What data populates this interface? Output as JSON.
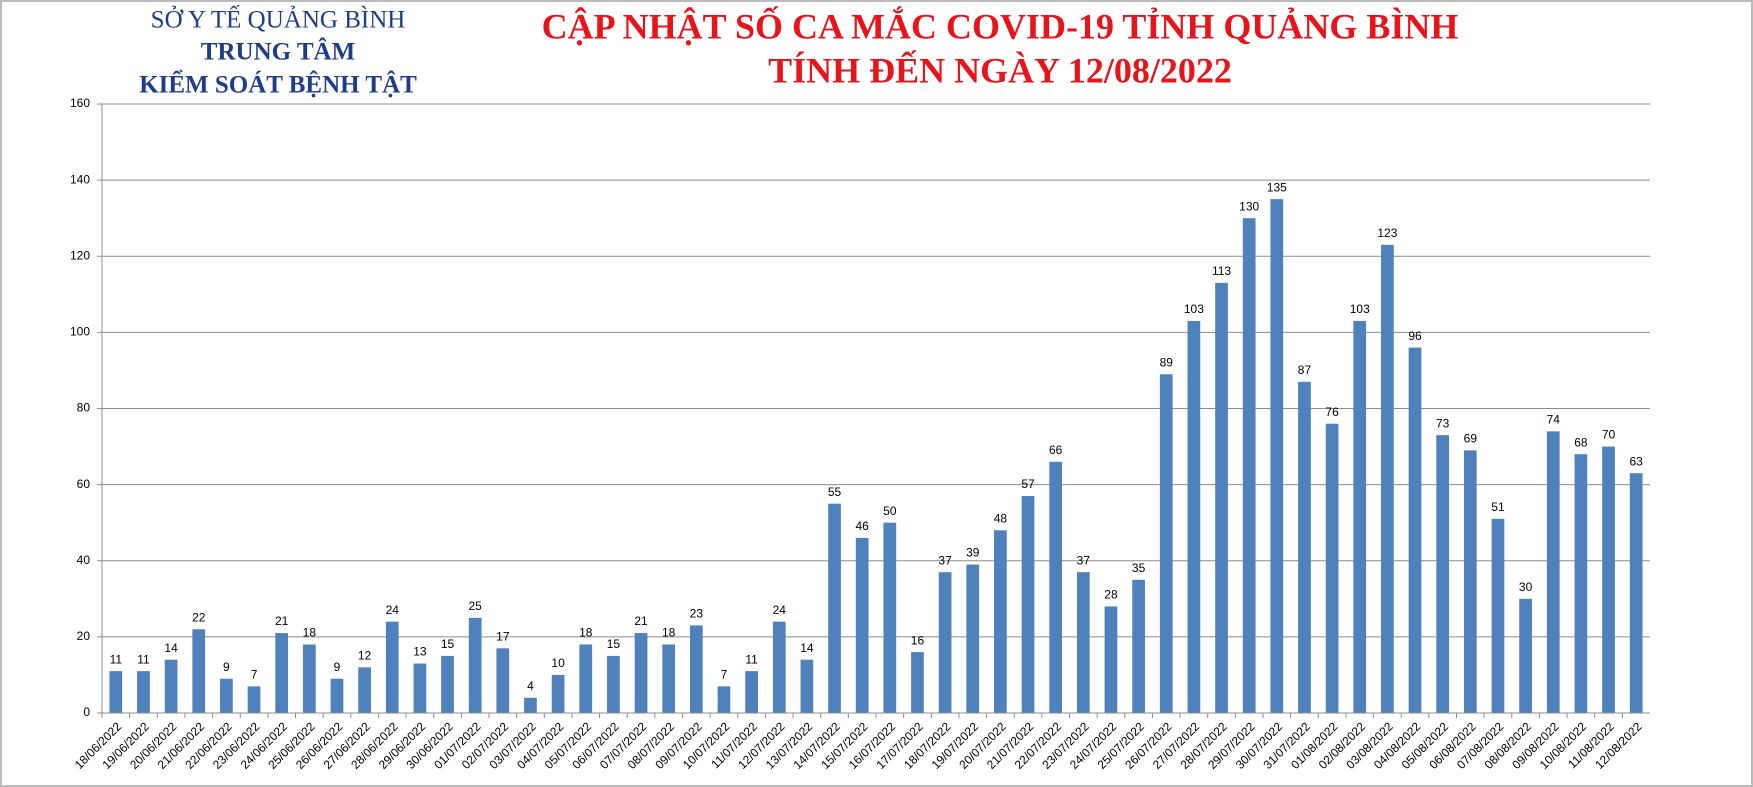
{
  "header": {
    "lines": [
      "SỞ Y TẾ QUẢNG BÌNH",
      "TRUNG TÂM",
      "KIỂM SOÁT BỆNH TẬT"
    ]
  },
  "chart_data": {
    "type": "bar",
    "title": "CẬP NHẬT SỐ CA MẮC COVID-19 TỈNH QUẢNG BÌNH",
    "subtitle": "TÍNH ĐẾN NGÀY 12/08/2022",
    "categories": [
      "18/06/2022",
      "19/06/2022",
      "20/06/2022",
      "21/06/2022",
      "22/06/2022",
      "23/06/2022",
      "24/06/2022",
      "25/06/2022",
      "26/06/2022",
      "27/06/2022",
      "28/06/2022",
      "29/06/2022",
      "30/06/2022",
      "01/07/2022",
      "02/07/2022",
      "03/07/2022",
      "04/07/2022",
      "05/07/2022",
      "06/07/2022",
      "07/07/2022",
      "08/07/2022",
      "09/07/2022",
      "10/07/2022",
      "11/07/2022",
      "12/07/2022",
      "13/07/2022",
      "14/07/2022",
      "15/07/2022",
      "16/07/2022",
      "17/07/2022",
      "18/07/2022",
      "19/07/2022",
      "20/07/2022",
      "21/07/2022",
      "22/07/2022",
      "23/07/2022",
      "24/07/2022",
      "25/07/2022",
      "26/07/2022",
      "27/07/2022",
      "28/07/2022",
      "29/07/2022",
      "30/07/2022",
      "31/07/2022",
      "01/08/2022",
      "02/08/2022",
      "03/08/2022",
      "04/08/2022",
      "05/08/2022",
      "06/08/2022",
      "07/08/2022",
      "08/08/2022",
      "09/08/2022",
      "10/08/2022",
      "11/08/2022",
      "12/08/2022"
    ],
    "values": [
      11,
      11,
      14,
      22,
      9,
      7,
      21,
      18,
      9,
      12,
      24,
      13,
      15,
      25,
      17,
      4,
      10,
      18,
      15,
      21,
      18,
      23,
      7,
      11,
      24,
      14,
      55,
      46,
      50,
      16,
      37,
      39,
      48,
      57,
      66,
      37,
      28,
      35,
      89,
      103,
      113,
      130,
      135,
      87,
      76,
      103,
      123,
      96,
      73,
      69,
      51,
      30,
      74,
      68,
      70,
      63
    ],
    "color": "#4f81bd",
    "ylim": [
      0,
      160
    ],
    "yticks": [
      0,
      20,
      40,
      60,
      80,
      100,
      120,
      140,
      160
    ],
    "grid": true
  }
}
